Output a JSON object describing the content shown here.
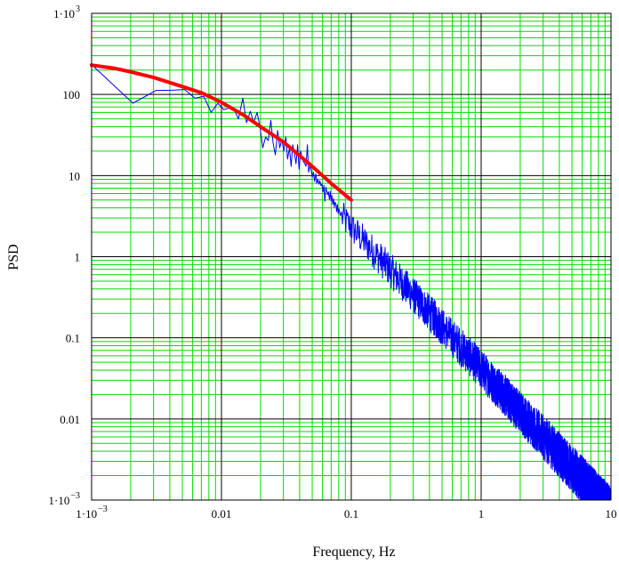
{
  "chart_data": {
    "type": "line",
    "title": "",
    "xlabel": "Frequency, Hz",
    "ylabel": "PSD",
    "xscale": "log",
    "yscale": "log",
    "xlim": [
      0.001,
      10
    ],
    "ylim": [
      0.001,
      1000
    ],
    "grid": true,
    "legend": "none",
    "colors": {
      "major_grid": "#000000",
      "minor_grid": "#00dd00",
      "measured": "#0000ff",
      "fit": "#ff0000"
    },
    "x_ticks": [
      {
        "base": "1·10",
        "exp": "−3"
      },
      {
        "base": "0.01",
        "exp": ""
      },
      {
        "base": "0.1",
        "exp": ""
      },
      {
        "base": "1",
        "exp": ""
      },
      {
        "base": "10",
        "exp": ""
      }
    ],
    "y_ticks": [
      {
        "base": "1·10",
        "exp": "−3"
      },
      {
        "base": "0.01",
        "exp": ""
      },
      {
        "base": "0.1",
        "exp": ""
      },
      {
        "base": "1",
        "exp": ""
      },
      {
        "base": "10",
        "exp": ""
      },
      {
        "base": "100",
        "exp": ""
      },
      {
        "base": "1·10",
        "exp": "3"
      }
    ],
    "series": [
      {
        "label": "measured",
        "color": "#0000ff",
        "x": [
          0.00104,
          0.00208,
          0.00313,
          0.00417,
          0.00521,
          0.00625,
          0.0073,
          0.00834,
          0.00938,
          0.0104,
          0.0115,
          0.0125,
          0.0135,
          0.0146,
          0.0156,
          0.0167,
          0.0177,
          0.0188,
          0.0198,
          0.0208,
          0.0219,
          0.0229,
          0.024,
          0.025,
          0.026,
          0.0271,
          0.0281,
          0.0292,
          0.0302,
          0.0313,
          0.0323,
          0.0334,
          0.0344,
          0.0354,
          0.0365,
          0.0375,
          0.0386,
          0.0396,
          0.0407,
          0.0417,
          0.0427,
          0.0438,
          0.0448,
          0.0459,
          0.0469,
          0.048,
          0.049,
          0.05,
          0.0511,
          0.0521,
          0.0532,
          0.0542,
          0.0553,
          0.0563,
          0.0573,
          0.0584,
          0.0594,
          0.0605,
          0.0615,
          0.0625,
          0.0636,
          0.0646,
          0.0657,
          0.0667,
          0.0678,
          0.0688,
          0.0698,
          0.0709,
          0.0719,
          0.073,
          0.074,
          0.0751,
          0.0761,
          0.0771,
          0.0782,
          0.0792,
          0.0803,
          0.0813,
          0.0824,
          0.0834
        ],
        "y": [
          220,
          78,
          112,
          113,
          115,
          90,
          95,
          60,
          78,
          65,
          68,
          66,
          50,
          90,
          45,
          62,
          45,
          60,
          40,
          22,
          30,
          27,
          48,
          25,
          18,
          36,
          22,
          28,
          20,
          30,
          16,
          22,
          13,
          24,
          19,
          14,
          24,
          12,
          20,
          17,
          15,
          14,
          13,
          24,
          11,
          13,
          12,
          9.5,
          11,
          8.5,
          10.5,
          8,
          9,
          7.8,
          8.6,
          7.5,
          7.9,
          6.3,
          7.6,
          4.8,
          7.2,
          6.6,
          5.8,
          6.3,
          5.1,
          6.4,
          4.9,
          5.7,
          4.4,
          5.2,
          4.1,
          4.7,
          4.5,
          3.6,
          4.4,
          3.4,
          3.9,
          3.6,
          3.2,
          3.4
        ],
        "trend": {
          "anchor_x": 0.1,
          "anchor_y": 2.3,
          "slope": -1.75,
          "x_end": 10,
          "y_end_range": [
            0.0012,
            0.012
          ]
        }
      },
      {
        "label": "fit",
        "color": "#ff0000",
        "x": [
          0.001,
          0.0015,
          0.002,
          0.003,
          0.004,
          0.005,
          0.007,
          0.01,
          0.015,
          0.02,
          0.03,
          0.05,
          0.07,
          0.1
        ],
        "y": [
          230,
          210,
          190,
          162,
          140,
          125,
          105,
          80,
          55,
          40,
          26,
          13,
          8,
          5
        ]
      }
    ]
  }
}
